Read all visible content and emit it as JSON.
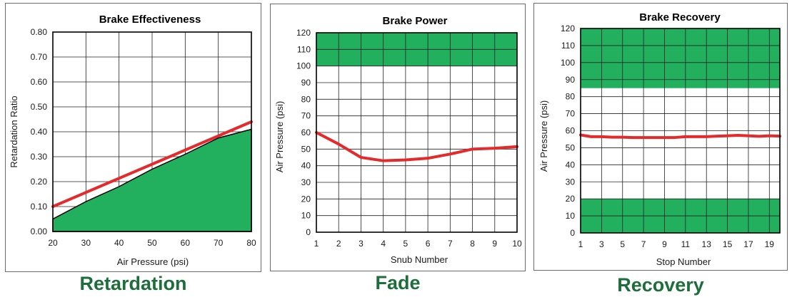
{
  "chart_data": [
    {
      "type": "line",
      "title": "Brake Effectiveness",
      "xlabel": "Air Pressure (psi)",
      "ylabel": "Retardation Ratio",
      "xlim": [
        20,
        80
      ],
      "ylim": [
        0,
        0.8
      ],
      "xticks": [
        "20",
        "30",
        "40",
        "50",
        "60",
        "70",
        "80"
      ],
      "yticks": [
        "0.00",
        "0.10",
        "0.20",
        "0.30",
        "0.40",
        "0.50",
        "0.60",
        "0.70",
        "0.80"
      ],
      "grid": true,
      "series": [
        {
          "role": "limit-area",
          "color": "#22b05f",
          "x": [
            20,
            30,
            40,
            50,
            60,
            70,
            80
          ],
          "y": [
            0.05,
            0.12,
            0.18,
            0.25,
            0.31,
            0.375,
            0.41
          ]
        },
        {
          "role": "line",
          "color": "#e42a2a",
          "x": [
            20,
            80
          ],
          "y": [
            0.1,
            0.44
          ]
        }
      ],
      "caption": "Retardation"
    },
    {
      "type": "line",
      "title": "Brake Power",
      "xlabel": "Snub Number",
      "ylabel": "Air Pressure (psi)",
      "xlim": [
        1,
        10
      ],
      "ylim": [
        0,
        120
      ],
      "xticks": [
        "1",
        "2",
        "3",
        "4",
        "5",
        "6",
        "7",
        "8",
        "9",
        "10"
      ],
      "yticks": [
        "0",
        "10",
        "20",
        "30",
        "40",
        "50",
        "60",
        "70",
        "80",
        "90",
        "100",
        "110",
        "120"
      ],
      "grid": true,
      "bands": [
        {
          "from": 100,
          "to": 120,
          "color": "#22b05f"
        }
      ],
      "series": [
        {
          "role": "line",
          "color": "#e42a2a",
          "x": [
            1,
            2,
            3,
            4,
            5,
            6,
            7,
            8,
            9,
            10
          ],
          "y": [
            60,
            53,
            45,
            43,
            43.5,
            44.5,
            47,
            50,
            50.5,
            51.5
          ]
        }
      ],
      "caption": "Fade"
    },
    {
      "type": "line",
      "title": "Brake Recovery",
      "xlabel": "Stop Number",
      "ylabel": "Air Pressure (psi)",
      "xlim": [
        1,
        20
      ],
      "ylim": [
        0,
        120
      ],
      "xticks": [
        "1",
        "3",
        "5",
        "7",
        "9",
        "11",
        "13",
        "15",
        "17",
        "19"
      ],
      "yticks": [
        "0",
        "10",
        "20",
        "30",
        "40",
        "50",
        "60",
        "70",
        "80",
        "90",
        "100",
        "110",
        "120"
      ],
      "grid": true,
      "bands": [
        {
          "from": 85,
          "to": 120,
          "color": "#22b05f"
        },
        {
          "from": 0,
          "to": 20,
          "color": "#22b05f"
        }
      ],
      "series": [
        {
          "role": "line",
          "color": "#e42a2a",
          "x": [
            1,
            2,
            3,
            4,
            5,
            6,
            7,
            8,
            9,
            10,
            11,
            12,
            13,
            14,
            15,
            16,
            17,
            18,
            19,
            20
          ],
          "y": [
            57.5,
            56.5,
            56.5,
            56.2,
            56.2,
            56,
            56,
            56,
            56,
            56,
            56.5,
            56.5,
            56.5,
            56.8,
            57,
            57.3,
            57,
            56.7,
            57,
            56.8
          ]
        }
      ],
      "caption": "Recovery"
    }
  ]
}
